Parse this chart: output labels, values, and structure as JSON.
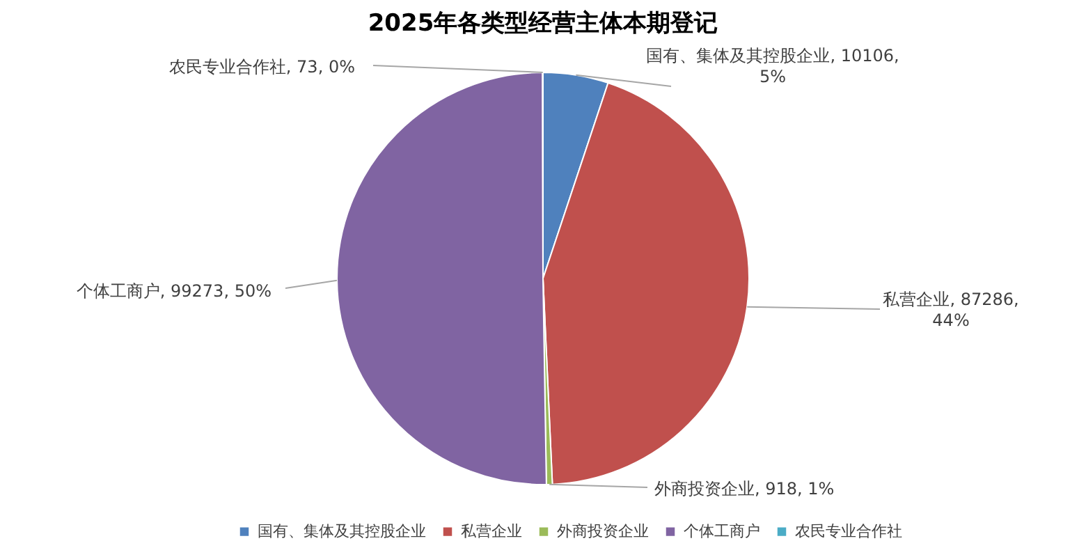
{
  "chart_data": {
    "type": "pie",
    "title": "2025年各类型经营主体本期登记",
    "categories": [
      "国有、集体及其控股企业",
      "私营企业",
      "外商投资企业",
      "个体工商户",
      "农民专业合作社"
    ],
    "values": [
      10106,
      87286,
      918,
      99273,
      73
    ],
    "colors": [
      "#4f81bd",
      "#c0504d",
      "#9bbb59",
      "#8064a2",
      "#4bacc6"
    ],
    "value_labels": [
      "国有、集体及其控股企业, 10106, 5%",
      "私营企业, 87286, 44%",
      "外商投资企业, 918, 1%",
      "个体工商户, 99273, 50%",
      "农民专业合作社, 73, 0%"
    ],
    "legend": "bottom"
  }
}
